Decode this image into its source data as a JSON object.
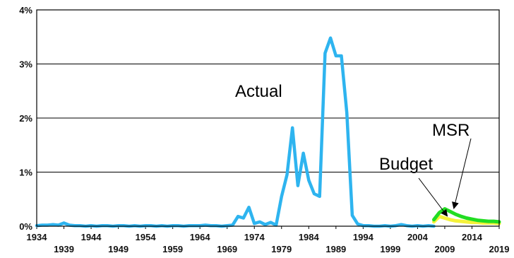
{
  "chart_data": {
    "type": "line",
    "title": "",
    "xlabel": "",
    "ylabel": "",
    "xlim": [
      1934,
      2019
    ],
    "ylim": [
      0,
      4
    ],
    "grid": true,
    "y_ticks": [
      {
        "value": 0,
        "label": "0%"
      },
      {
        "value": 1,
        "label": "1%"
      },
      {
        "value": 2,
        "label": "2%"
      },
      {
        "value": 3,
        "label": "3%"
      },
      {
        "value": 4,
        "label": "4%"
      }
    ],
    "x_ticks_upper": [
      {
        "value": 1934,
        "label": "1934"
      },
      {
        "value": 1944,
        "label": "1944"
      },
      {
        "value": 1954,
        "label": "1954"
      },
      {
        "value": 1964,
        "label": "1964"
      },
      {
        "value": 1974,
        "label": "1974"
      },
      {
        "value": 1984,
        "label": "1984"
      },
      {
        "value": 1994,
        "label": "1994"
      },
      {
        "value": 2004,
        "label": "2004"
      },
      {
        "value": 2014,
        "label": "2014"
      }
    ],
    "x_ticks_lower": [
      {
        "value": 1939,
        "label": "1939"
      },
      {
        "value": 1949,
        "label": "1949"
      },
      {
        "value": 1959,
        "label": "1959"
      },
      {
        "value": 1969,
        "label": "1969"
      },
      {
        "value": 1979,
        "label": "1979"
      },
      {
        "value": 1989,
        "label": "1989"
      },
      {
        "value": 1999,
        "label": "1999"
      },
      {
        "value": 2009,
        "label": "2009"
      },
      {
        "value": 2019,
        "label": "2019"
      }
    ],
    "series": [
      {
        "color": "#2eb4ef",
        "x": [
          1934,
          1935,
          1936,
          1937,
          1938,
          1939,
          1940,
          1941,
          1942,
          1943,
          1944,
          1945,
          1946,
          1947,
          1948,
          1949,
          1950,
          1951,
          1952,
          1953,
          1954,
          1955,
          1956,
          1957,
          1958,
          1959,
          1960,
          1961,
          1962,
          1963,
          1964,
          1965,
          1966,
          1967,
          1968,
          1969,
          1970,
          1971,
          1972,
          1973,
          1974,
          1975,
          1976,
          1977,
          1978,
          1979,
          1980,
          1981,
          1982,
          1983,
          1984,
          1985,
          1986,
          1987,
          1988,
          1989,
          1990,
          1991,
          1992,
          1993,
          1994,
          1995,
          1996,
          1997,
          1998,
          1999,
          2000,
          2001,
          2002,
          2003,
          2004,
          2005,
          2006,
          2007
        ],
        "values": [
          0.01,
          0.02,
          0.02,
          0.03,
          0.02,
          0.06,
          0.02,
          0.01,
          0.01,
          0.0,
          0.01,
          0.0,
          0.01,
          0.01,
          0.0,
          0.01,
          0.01,
          0.0,
          0.01,
          0.0,
          0.01,
          0.01,
          0.0,
          0.01,
          0.0,
          0.01,
          0.01,
          0.0,
          0.01,
          0.01,
          0.01,
          0.02,
          0.01,
          0.01,
          0.0,
          0.01,
          0.02,
          0.18,
          0.15,
          0.35,
          0.05,
          0.08,
          0.03,
          0.07,
          0.02,
          0.55,
          0.95,
          1.82,
          0.75,
          1.35,
          0.85,
          0.6,
          0.55,
          3.2,
          3.48,
          3.15,
          3.15,
          2.1,
          0.2,
          0.04,
          0.01,
          0.01,
          0.0,
          0.0,
          0.01,
          0.0,
          0.01,
          0.03,
          0.01,
          0.0,
          0.01,
          0.0,
          0.01,
          0.0
        ]
      },
      {
        "color": "#f5f23a",
        "x": [
          2007,
          2008,
          2009,
          2010,
          2011,
          2012,
          2013,
          2014,
          2015,
          2016,
          2017,
          2018,
          2019
        ],
        "values": [
          0.08,
          0.18,
          0.15,
          0.12,
          0.1,
          0.09,
          0.08,
          0.07,
          0.07,
          0.06,
          0.06,
          0.06,
          0.05
        ]
      },
      {
        "color": "#22dd22",
        "x": [
          2007,
          2008,
          2009,
          2010,
          2011,
          2012,
          2013,
          2014,
          2015,
          2016,
          2017,
          2018,
          2019
        ],
        "values": [
          0.12,
          0.25,
          0.32,
          0.27,
          0.22,
          0.18,
          0.15,
          0.13,
          0.11,
          0.1,
          0.09,
          0.09,
          0.08
        ]
      }
    ],
    "annotations": [
      {
        "text": "Actual"
      },
      {
        "text": "MSR",
        "points_to_x": 2011,
        "points_to_y": 0.3
      },
      {
        "text": "Budget",
        "points_to_x": 2009,
        "points_to_y": 0.2
      }
    ]
  }
}
